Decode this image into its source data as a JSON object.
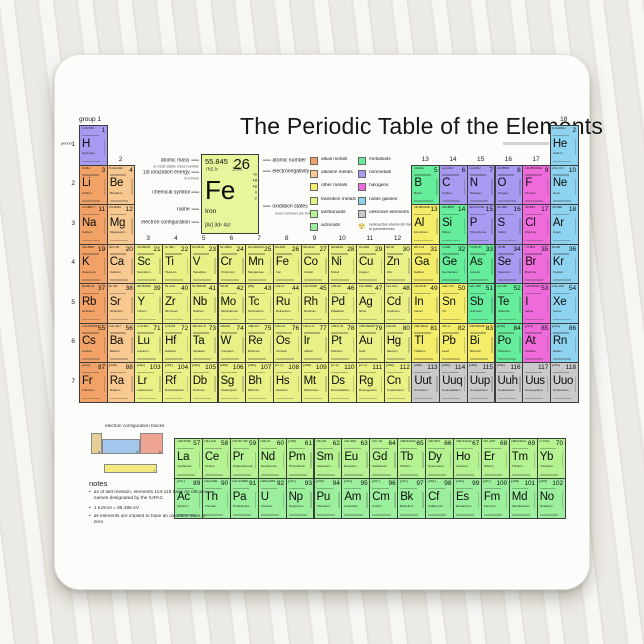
{
  "title": "The Periodic Table of the Elements",
  "labels": {
    "group_word": "group",
    "period_word": "period",
    "groups": [
      "1",
      "2",
      "3",
      "4",
      "5",
      "6",
      "7",
      "8",
      "9",
      "10",
      "11",
      "12",
      "13",
      "14",
      "15",
      "16",
      "17",
      "18"
    ],
    "periods": [
      "1",
      "2",
      "3",
      "4",
      "5",
      "6",
      "7"
    ]
  },
  "colors": {
    "alk": "#f2a266",
    "ae": "#f7c88f",
    "om": "#f3ed69",
    "tm": "#e9f186",
    "la": "#b5f392",
    "ac": "#9cf09d",
    "md": "#66ed9b",
    "nm": "#a89af0",
    "hal": "#ef6bdc",
    "ng": "#8ed3f0",
    "uk": "#cacaca",
    "keybox": "#e7f59c",
    "blk_s": "#e5cf96",
    "blk_d": "#a3c7ec",
    "blk_p": "#f0a494",
    "blk_f": "#f3e97f"
  },
  "key": {
    "mass": "55.845",
    "number": "26",
    "ionization": "762.5",
    "electronegativity": "1.83",
    "symbol": "Fe",
    "name": "Iron",
    "config": "[Ar] 3d⁶ 4s²",
    "oxidation": [
      "+6",
      "+3",
      "+2",
      "0",
      "-2"
    ],
    "lbl_mass": "atomic mass",
    "lbl_mass_sub": "or most stable mass number",
    "lbl_ion": "1st ionization energy",
    "lbl_ion_sub": "in kJ/mol",
    "lbl_symbol": "chemical symbol",
    "lbl_name": "name",
    "lbl_config": "electron configuration",
    "lbl_number": "atomic number",
    "lbl_en": "electronegativity",
    "lbl_ox": "oxidation states",
    "lbl_ox_sub": "most common are bold"
  },
  "legend": {
    "col1": [
      {
        "c": "alk",
        "label": "alkali metals"
      },
      {
        "c": "ae",
        "label": "alkaline metals"
      },
      {
        "c": "om",
        "label": "other metals"
      },
      {
        "c": "tm",
        "label": "transition metals"
      },
      {
        "c": "la",
        "label": "lanthanoids"
      },
      {
        "c": "ac",
        "label": "actinoids"
      }
    ],
    "col2": [
      {
        "c": "md",
        "label": "metalloids"
      },
      {
        "c": "nm",
        "label": "nonmetals"
      },
      {
        "c": "hal",
        "label": "halogens"
      },
      {
        "c": "ng",
        "label": "noble gasses"
      },
      {
        "c": "uk",
        "label": "unknown elements"
      }
    ],
    "radioactive_icon": "☢",
    "radioactive_note": "radioactive elements have mass in parentheses"
  },
  "blocks": {
    "title": "electron configuration blocks",
    "items": [
      {
        "key": "blk_s",
        "label": "s"
      },
      {
        "key": "blk_d",
        "label": "d"
      },
      {
        "key": "blk_p",
        "label": "p"
      },
      {
        "key": "blk_f",
        "label": "f"
      }
    ]
  },
  "notes": {
    "heading": "notes",
    "items": [
      "as of last revision, elements 113-118 have no official names designated by the IUPAC",
      "1 kJ/mol = 96.485 eV",
      "all elements are implied to have an oxidation state of zero"
    ]
  },
  "elements": [
    {
      "n": 1,
      "s": "H",
      "name": "Hydrogen",
      "m": "1.00794",
      "g": 1,
      "p": 1,
      "c": "nm"
    },
    {
      "n": 2,
      "s": "He",
      "name": "Helium",
      "m": "4.002602",
      "g": 18,
      "p": 1,
      "c": "ng"
    },
    {
      "n": 3,
      "s": "Li",
      "name": "Lithium",
      "m": "6.941",
      "g": 1,
      "p": 2,
      "c": "alk"
    },
    {
      "n": 4,
      "s": "Be",
      "name": "Beryllium",
      "m": "9.012182",
      "g": 2,
      "p": 2,
      "c": "ae"
    },
    {
      "n": 5,
      "s": "B",
      "name": "Boron",
      "m": "10.811",
      "g": 13,
      "p": 2,
      "c": "md"
    },
    {
      "n": 6,
      "s": "C",
      "name": "Carbon",
      "m": "12.0107",
      "g": 14,
      "p": 2,
      "c": "nm"
    },
    {
      "n": 7,
      "s": "N",
      "name": "Nitrogen",
      "m": "14.0067",
      "g": 15,
      "p": 2,
      "c": "nm"
    },
    {
      "n": 8,
      "s": "O",
      "name": "Oxygen",
      "m": "15.9994",
      "g": 16,
      "p": 2,
      "c": "nm"
    },
    {
      "n": 9,
      "s": "F",
      "name": "Fluorine",
      "m": "18.9984032",
      "g": 17,
      "p": 2,
      "c": "hal"
    },
    {
      "n": 10,
      "s": "Ne",
      "name": "Neon",
      "m": "20.1797",
      "g": 18,
      "p": 2,
      "c": "ng"
    },
    {
      "n": 11,
      "s": "Na",
      "name": "Sodium",
      "m": "22.98977",
      "g": 1,
      "p": 3,
      "c": "alk"
    },
    {
      "n": 12,
      "s": "Mg",
      "name": "Magnesium",
      "m": "24.3050",
      "g": 2,
      "p": 3,
      "c": "ae"
    },
    {
      "n": 13,
      "s": "Al",
      "name": "Aluminium",
      "m": "26.981538",
      "g": 13,
      "p": 3,
      "c": "om"
    },
    {
      "n": 14,
      "s": "Si",
      "name": "Silicon",
      "m": "28.0855",
      "g": 14,
      "p": 3,
      "c": "md"
    },
    {
      "n": 15,
      "s": "P",
      "name": "Phosphorus",
      "m": "30.973761",
      "g": 15,
      "p": 3,
      "c": "nm"
    },
    {
      "n": 16,
      "s": "S",
      "name": "Sulfur",
      "m": "32.065",
      "g": 16,
      "p": 3,
      "c": "nm"
    },
    {
      "n": 17,
      "s": "Cl",
      "name": "Chlorine",
      "m": "35.453",
      "g": 17,
      "p": 3,
      "c": "hal"
    },
    {
      "n": 18,
      "s": "Ar",
      "name": "Argon",
      "m": "39.948",
      "g": 18,
      "p": 3,
      "c": "ng"
    },
    {
      "n": 19,
      "s": "K",
      "name": "Potassium",
      "m": "39.0983",
      "g": 1,
      "p": 4,
      "c": "alk"
    },
    {
      "n": 20,
      "s": "Ca",
      "name": "Calcium",
      "m": "40.078",
      "g": 2,
      "p": 4,
      "c": "ae"
    },
    {
      "n": 21,
      "s": "Sc",
      "name": "Scandium",
      "m": "44.95591",
      "g": 3,
      "p": 4,
      "c": "tm"
    },
    {
      "n": 22,
      "s": "Ti",
      "name": "Titanium",
      "m": "47.867",
      "g": 4,
      "p": 4,
      "c": "tm"
    },
    {
      "n": 23,
      "s": "V",
      "name": "Vanadium",
      "m": "50.9415",
      "g": 5,
      "p": 4,
      "c": "tm"
    },
    {
      "n": 24,
      "s": "Cr",
      "name": "Chromium",
      "m": "51.9961",
      "g": 6,
      "p": 4,
      "c": "tm"
    },
    {
      "n": 25,
      "s": "Mn",
      "name": "Manganese",
      "m": "54.938049",
      "g": 7,
      "p": 4,
      "c": "tm"
    },
    {
      "n": 26,
      "s": "Fe",
      "name": "Iron",
      "m": "55.845",
      "g": 8,
      "p": 4,
      "c": "tm"
    },
    {
      "n": 27,
      "s": "Co",
      "name": "Cobalt",
      "m": "58.9332",
      "g": 9,
      "p": 4,
      "c": "tm"
    },
    {
      "n": 28,
      "s": "Ni",
      "name": "Nickel",
      "m": "58.6934",
      "g": 10,
      "p": 4,
      "c": "tm"
    },
    {
      "n": 29,
      "s": "Cu",
      "name": "Copper",
      "m": "63.546",
      "g": 11,
      "p": 4,
      "c": "tm"
    },
    {
      "n": 30,
      "s": "Zn",
      "name": "Zinc",
      "m": "65.39",
      "g": 12,
      "p": 4,
      "c": "tm"
    },
    {
      "n": 31,
      "s": "Ga",
      "name": "Gallium",
      "m": "69.723",
      "g": 13,
      "p": 4,
      "c": "om"
    },
    {
      "n": 32,
      "s": "Ge",
      "name": "Germanium",
      "m": "72.64",
      "g": 14,
      "p": 4,
      "c": "md"
    },
    {
      "n": 33,
      "s": "As",
      "name": "Arsenic",
      "m": "74.9216",
      "g": 15,
      "p": 4,
      "c": "md"
    },
    {
      "n": 34,
      "s": "Se",
      "name": "Selenium",
      "m": "78.96",
      "g": 16,
      "p": 4,
      "c": "nm"
    },
    {
      "n": 35,
      "s": "Br",
      "name": "Bromine",
      "m": "79.904",
      "g": 17,
      "p": 4,
      "c": "hal"
    },
    {
      "n": 36,
      "s": "Kr",
      "name": "Krypton",
      "m": "83.80",
      "g": 18,
      "p": 4,
      "c": "ng"
    },
    {
      "n": 37,
      "s": "Rb",
      "name": "Rubidium",
      "m": "85.4678",
      "g": 1,
      "p": 5,
      "c": "alk"
    },
    {
      "n": 38,
      "s": "Sr",
      "name": "Strontium",
      "m": "87.62",
      "g": 2,
      "p": 5,
      "c": "ae"
    },
    {
      "n": 39,
      "s": "Y",
      "name": "Yttrium",
      "m": "88.90585",
      "g": 3,
      "p": 5,
      "c": "tm"
    },
    {
      "n": 40,
      "s": "Zr",
      "name": "Zirconium",
      "m": "91.224",
      "g": 4,
      "p": 5,
      "c": "tm"
    },
    {
      "n": 41,
      "s": "Nb",
      "name": "Niobium",
      "m": "92.90638",
      "g": 5,
      "p": 5,
      "c": "tm"
    },
    {
      "n": 42,
      "s": "Mo",
      "name": "Molybdenum",
      "m": "95.94",
      "g": 6,
      "p": 5,
      "c": "tm"
    },
    {
      "n": 43,
      "s": "Tc",
      "name": "Technetium",
      "m": "(98)",
      "g": 7,
      "p": 5,
      "c": "tm"
    },
    {
      "n": 44,
      "s": "Ru",
      "name": "Ruthenium",
      "m": "101.07",
      "g": 8,
      "p": 5,
      "c": "tm"
    },
    {
      "n": 45,
      "s": "Rh",
      "name": "Rhodium",
      "m": "102.9055",
      "g": 9,
      "p": 5,
      "c": "tm"
    },
    {
      "n": 46,
      "s": "Pd",
      "name": "Palladium",
      "m": "106.42",
      "g": 10,
      "p": 5,
      "c": "tm"
    },
    {
      "n": 47,
      "s": "Ag",
      "name": "Silver",
      "m": "107.8682",
      "g": 11,
      "p": 5,
      "c": "tm"
    },
    {
      "n": 48,
      "s": "Cd",
      "name": "Cadmium",
      "m": "112.411",
      "g": 12,
      "p": 5,
      "c": "tm"
    },
    {
      "n": 49,
      "s": "In",
      "name": "Indium",
      "m": "114.818",
      "g": 13,
      "p": 5,
      "c": "om"
    },
    {
      "n": 50,
      "s": "Sn",
      "name": "Tin",
      "m": "118.710",
      "g": 14,
      "p": 5,
      "c": "om"
    },
    {
      "n": 51,
      "s": "Sb",
      "name": "Antimony",
      "m": "121.760",
      "g": 15,
      "p": 5,
      "c": "md"
    },
    {
      "n": 52,
      "s": "Te",
      "name": "Tellurium",
      "m": "127.60",
      "g": 16,
      "p": 5,
      "c": "md"
    },
    {
      "n": 53,
      "s": "I",
      "name": "Iodine",
      "m": "126.90447",
      "g": 17,
      "p": 5,
      "c": "hal"
    },
    {
      "n": 54,
      "s": "Xe",
      "name": "Xenon",
      "m": "131.293",
      "g": 18,
      "p": 5,
      "c": "ng"
    },
    {
      "n": 55,
      "s": "Cs",
      "name": "Cesium",
      "m": "132.90545",
      "g": 1,
      "p": 6,
      "c": "alk"
    },
    {
      "n": 56,
      "s": "Ba",
      "name": "Barium",
      "m": "137.327",
      "g": 2,
      "p": 6,
      "c": "ae"
    },
    {
      "n": 71,
      "s": "Lu",
      "name": "Lutetium",
      "m": "174.967",
      "g": 3,
      "p": 6,
      "c": "tm"
    },
    {
      "n": 72,
      "s": "Hf",
      "name": "Hafnium",
      "m": "178.49",
      "g": 4,
      "p": 6,
      "c": "tm"
    },
    {
      "n": 73,
      "s": "Ta",
      "name": "Tantalum",
      "m": "180.9479",
      "g": 5,
      "p": 6,
      "c": "tm"
    },
    {
      "n": 74,
      "s": "W",
      "name": "Tungsten",
      "m": "183.84",
      "g": 6,
      "p": 6,
      "c": "tm"
    },
    {
      "n": 75,
      "s": "Re",
      "name": "Rhenium",
      "m": "186.207",
      "g": 7,
      "p": 6,
      "c": "tm"
    },
    {
      "n": 76,
      "s": "Os",
      "name": "Osmium",
      "m": "190.23",
      "g": 8,
      "p": 6,
      "c": "tm"
    },
    {
      "n": 77,
      "s": "Ir",
      "name": "Iridium",
      "m": "192.217",
      "g": 9,
      "p": 6,
      "c": "tm"
    },
    {
      "n": 78,
      "s": "Pt",
      "name": "Platinum",
      "m": "195.078",
      "g": 10,
      "p": 6,
      "c": "tm"
    },
    {
      "n": 79,
      "s": "Au",
      "name": "Gold",
      "m": "196.96655",
      "g": 11,
      "p": 6,
      "c": "tm"
    },
    {
      "n": 80,
      "s": "Hg",
      "name": "Mercury",
      "m": "200.59",
      "g": 12,
      "p": 6,
      "c": "tm"
    },
    {
      "n": 81,
      "s": "Tl",
      "name": "Thallium",
      "m": "204.3833",
      "g": 13,
      "p": 6,
      "c": "om"
    },
    {
      "n": 82,
      "s": "Pb",
      "name": "Lead",
      "m": "207.2",
      "g": 14,
      "p": 6,
      "c": "om"
    },
    {
      "n": 83,
      "s": "Bi",
      "name": "Bismuth",
      "m": "208.98038",
      "g": 15,
      "p": 6,
      "c": "om"
    },
    {
      "n": 84,
      "s": "Po",
      "name": "Polonium",
      "m": "(209)",
      "g": 16,
      "p": 6,
      "c": "md"
    },
    {
      "n": 85,
      "s": "At",
      "name": "Astatine",
      "m": "(210)",
      "g": 17,
      "p": 6,
      "c": "hal"
    },
    {
      "n": 86,
      "s": "Rn",
      "name": "Radon",
      "m": "(222)",
      "g": 18,
      "p": 6,
      "c": "ng"
    },
    {
      "n": 87,
      "s": "Fr",
      "name": "Francium",
      "m": "(223)",
      "g": 1,
      "p": 7,
      "c": "alk"
    },
    {
      "n": 88,
      "s": "Ra",
      "name": "Radium",
      "m": "(226)",
      "g": 2,
      "p": 7,
      "c": "ae"
    },
    {
      "n": 103,
      "s": "Lr",
      "name": "Lawrencium",
      "m": "(262)",
      "g": 3,
      "p": 7,
      "c": "tm"
    },
    {
      "n": 104,
      "s": "Rf",
      "name": "Rutherfordium",
      "m": "(261)",
      "g": 4,
      "p": 7,
      "c": "tm"
    },
    {
      "n": 105,
      "s": "Db",
      "name": "Dubnium",
      "m": "(262)",
      "g": 5,
      "p": 7,
      "c": "tm"
    },
    {
      "n": 106,
      "s": "Sg",
      "name": "Seaborgium",
      "m": "(266)",
      "g": 6,
      "p": 7,
      "c": "tm"
    },
    {
      "n": 107,
      "s": "Bh",
      "name": "Bohrium",
      "m": "(264)",
      "g": 7,
      "p": 7,
      "c": "tm"
    },
    {
      "n": 108,
      "s": "Hs",
      "name": "Hassium",
      "m": "(277)",
      "g": 8,
      "p": 7,
      "c": "tm"
    },
    {
      "n": 109,
      "s": "Mt",
      "name": "Meitnerium",
      "m": "(268)",
      "g": 9,
      "p": 7,
      "c": "tm"
    },
    {
      "n": 110,
      "s": "Ds",
      "name": "Darmstadtium",
      "m": "(271)",
      "g": 10,
      "p": 7,
      "c": "tm"
    },
    {
      "n": 111,
      "s": "Rg",
      "name": "Roentgenium",
      "m": "(272)",
      "g": 11,
      "p": 7,
      "c": "tm"
    },
    {
      "n": 112,
      "s": "Cn",
      "name": "Copernicium",
      "m": "(285)",
      "g": 12,
      "p": 7,
      "c": "tm"
    },
    {
      "n": 113,
      "s": "Uut",
      "name": "Ununtrium",
      "m": "(284)",
      "g": 13,
      "p": 7,
      "c": "uk"
    },
    {
      "n": 114,
      "s": "Uuq",
      "name": "Ununquadium",
      "m": "(289)",
      "g": 14,
      "p": 7,
      "c": "uk"
    },
    {
      "n": 115,
      "s": "Uup",
      "name": "Ununpentium",
      "m": "(288)",
      "g": 15,
      "p": 7,
      "c": "uk"
    },
    {
      "n": 116,
      "s": "Uuh",
      "name": "Ununhexium",
      "m": "(292)",
      "g": 16,
      "p": 7,
      "c": "uk"
    },
    {
      "n": 117,
      "s": "Uus",
      "name": "Ununseptium",
      "m": "",
      "g": 17,
      "p": 7,
      "c": "uk"
    },
    {
      "n": 118,
      "s": "Uuo",
      "name": "Ununoctium",
      "m": "(294)",
      "g": 18,
      "p": 7,
      "c": "uk"
    },
    {
      "n": 57,
      "s": "La",
      "name": "Lanthanum",
      "m": "138.9055",
      "f": 1,
      "i": 1,
      "c": "la"
    },
    {
      "n": 58,
      "s": "Ce",
      "name": "Cerium",
      "m": "140.116",
      "f": 1,
      "i": 2,
      "c": "la"
    },
    {
      "n": 59,
      "s": "Pr",
      "name": "Praseodymium",
      "m": "140.90765",
      "f": 1,
      "i": 3,
      "c": "la"
    },
    {
      "n": 60,
      "s": "Nd",
      "name": "Neodymium",
      "m": "144.24",
      "f": 1,
      "i": 4,
      "c": "la"
    },
    {
      "n": 61,
      "s": "Pm",
      "name": "Promethium",
      "m": "(145)",
      "f": 1,
      "i": 5,
      "c": "la"
    },
    {
      "n": 62,
      "s": "Sm",
      "name": "Samarium",
      "m": "150.36",
      "f": 1,
      "i": 6,
      "c": "la"
    },
    {
      "n": 63,
      "s": "Eu",
      "name": "Europium",
      "m": "151.964",
      "f": 1,
      "i": 7,
      "c": "la"
    },
    {
      "n": 64,
      "s": "Gd",
      "name": "Gadolinium",
      "m": "157.25",
      "f": 1,
      "i": 8,
      "c": "la"
    },
    {
      "n": 65,
      "s": "Tb",
      "name": "Terbium",
      "m": "158.92534",
      "f": 1,
      "i": 9,
      "c": "la"
    },
    {
      "n": 66,
      "s": "Dy",
      "name": "Dysprosium",
      "m": "162.500",
      "f": 1,
      "i": 10,
      "c": "la"
    },
    {
      "n": 67,
      "s": "Ho",
      "name": "Holmium",
      "m": "164.93032",
      "f": 1,
      "i": 11,
      "c": "la"
    },
    {
      "n": 68,
      "s": "Er",
      "name": "Erbium",
      "m": "167.259",
      "f": 1,
      "i": 12,
      "c": "la"
    },
    {
      "n": 69,
      "s": "Tm",
      "name": "Thulium",
      "m": "168.93421",
      "f": 1,
      "i": 13,
      "c": "la"
    },
    {
      "n": 70,
      "s": "Yb",
      "name": "Ytterbium",
      "m": "173.04",
      "f": 1,
      "i": 14,
      "c": "la"
    },
    {
      "n": 89,
      "s": "Ac",
      "name": "Actinium",
      "m": "(227)",
      "f": 2,
      "i": 1,
      "c": "ac"
    },
    {
      "n": 90,
      "s": "Th",
      "name": "Thorium",
      "m": "232.0381",
      "f": 2,
      "i": 2,
      "c": "ac"
    },
    {
      "n": 91,
      "s": "Pa",
      "name": "Protactinium",
      "m": "231.03588",
      "f": 2,
      "i": 3,
      "c": "ac"
    },
    {
      "n": 92,
      "s": "U",
      "name": "Uranium",
      "m": "238.02891",
      "f": 2,
      "i": 4,
      "c": "ac"
    },
    {
      "n": 93,
      "s": "Np",
      "name": "Neptunium",
      "m": "(237)",
      "f": 2,
      "i": 5,
      "c": "ac"
    },
    {
      "n": 94,
      "s": "Pu",
      "name": "Plutonium",
      "m": "(244)",
      "f": 2,
      "i": 6,
      "c": "ac"
    },
    {
      "n": 95,
      "s": "Am",
      "name": "Americium",
      "m": "(243)",
      "f": 2,
      "i": 7,
      "c": "ac"
    },
    {
      "n": 96,
      "s": "Cm",
      "name": "Curium",
      "m": "(247)",
      "f": 2,
      "i": 8,
      "c": "ac"
    },
    {
      "n": 97,
      "s": "Bk",
      "name": "Berkelium",
      "m": "(247)",
      "f": 2,
      "i": 9,
      "c": "ac"
    },
    {
      "n": 98,
      "s": "Cf",
      "name": "Californium",
      "m": "(251)",
      "f": 2,
      "i": 10,
      "c": "ac"
    },
    {
      "n": 99,
      "s": "Es",
      "name": "Einsteinium",
      "m": "(252)",
      "f": 2,
      "i": 11,
      "c": "ac"
    },
    {
      "n": 100,
      "s": "Fm",
      "name": "Fermium",
      "m": "(257)",
      "f": 2,
      "i": 12,
      "c": "ac"
    },
    {
      "n": 101,
      "s": "Md",
      "name": "Mendelevium",
      "m": "(258)",
      "f": 2,
      "i": 13,
      "c": "ac"
    },
    {
      "n": 102,
      "s": "No",
      "name": "Nobelium",
      "m": "(259)",
      "f": 2,
      "i": 14,
      "c": "ac"
    }
  ]
}
